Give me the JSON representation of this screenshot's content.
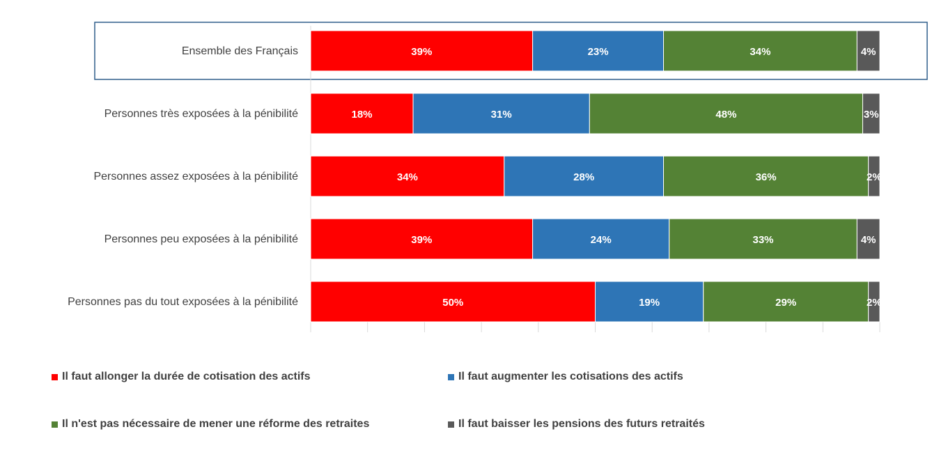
{
  "chart_data": {
    "type": "bar",
    "orientation": "horizontal",
    "stacked": true,
    "percent_stacked": true,
    "categories": [
      "Ensemble des Français",
      "Personnes très exposées à la pénibilité",
      "Personnes assez exposées à la pénibilité",
      "Personnes peu exposées à la pénibilité",
      "Personnes pas du tout exposées à la pénibilité"
    ],
    "highlighted_category": "Ensemble des Français",
    "series": [
      {
        "name": "Il faut allonger la durée de cotisation des actifs",
        "color": "#ff0000",
        "values": [
          39,
          18,
          34,
          39,
          50
        ],
        "labels": [
          "39%",
          "18%",
          "34%",
          "39%",
          "50%"
        ]
      },
      {
        "name": "Il faut augmenter les cotisations des actifs",
        "color": "#2e75b6",
        "values": [
          23,
          31,
          28,
          24,
          19
        ],
        "labels": [
          "23%",
          "31%",
          "28%",
          "24%",
          "19%"
        ]
      },
      {
        "name": "Il n'est pas nécessaire de mener une réforme des retraites",
        "color": "#548235",
        "values": [
          34,
          48,
          36,
          33,
          29
        ],
        "labels": [
          "34%",
          "48%",
          "36%",
          "33%",
          "29%"
        ]
      },
      {
        "name": "Il faut baisser les pensions des futurs retraités",
        "color": "#595959",
        "values": [
          4,
          3,
          2,
          4,
          2
        ],
        "labels": [
          "4%",
          "3%",
          "2%",
          "4%",
          "2%"
        ]
      }
    ],
    "xlim": [
      0,
      100
    ],
    "legend_position": "bottom",
    "grid": false
  }
}
